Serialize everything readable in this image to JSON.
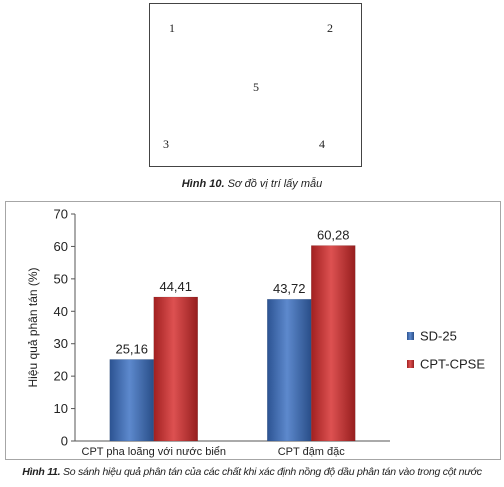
{
  "figure10": {
    "points": [
      "1",
      "2",
      "5",
      "3",
      "4"
    ],
    "caption_label": "Hình 10.",
    "caption_text": " Sơ đồ vị trí lấy mẫu"
  },
  "figure11": {
    "caption_label": "Hình 11.",
    "caption_text": " So sánh hiệu quả phân tán của các chất khi xác định nồng độ dầu phân tán vào trong cột nước"
  },
  "chart_data": {
    "type": "bar",
    "categories": [
      "CPT pha loãng với nước biển",
      "CPT đậm đặc"
    ],
    "series": [
      {
        "name": "SD-25",
        "values": [
          25.16,
          43.72
        ],
        "labels": [
          "25,16",
          "43,72"
        ],
        "color": "#3a6fc2"
      },
      {
        "name": "CPT-CPSE",
        "values": [
          44.41,
          60.28
        ],
        "labels": [
          "44,41",
          "60,28"
        ],
        "color": "#d62b2b"
      }
    ],
    "title": "",
    "xlabel": "",
    "ylabel": "Hiệu quả phân tán (%)",
    "ylim": [
      0,
      70
    ],
    "yticks": [
      0,
      10,
      20,
      30,
      40,
      50,
      60,
      70
    ],
    "legend_position": "right",
    "grid": false
  }
}
